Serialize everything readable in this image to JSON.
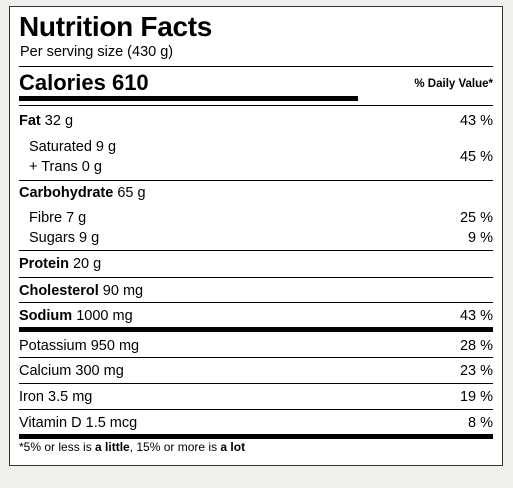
{
  "title": "Nutrition Facts",
  "serving": "Per serving size (430 g)",
  "calories": {
    "label": "Calories",
    "value": "610"
  },
  "dv_header": "% Daily Value*",
  "rows": {
    "fat": {
      "name": "Fat",
      "amount": "32 g",
      "dv": "43 %"
    },
    "saturated": {
      "name": "Saturated",
      "amount": "9 g"
    },
    "trans": {
      "name": "+ Trans",
      "amount": "0 g"
    },
    "sat_trans_dv": "45 %",
    "carbohydrate": {
      "name": "Carbohydrate",
      "amount": "65 g"
    },
    "fibre": {
      "name": "Fibre",
      "amount": "7 g",
      "dv": "25 %"
    },
    "sugars": {
      "name": "Sugars",
      "amount": "9 g",
      "dv": "9 %"
    },
    "protein": {
      "name": "Protein",
      "amount": "20 g"
    },
    "cholesterol": {
      "name": "Cholesterol",
      "amount": "90 mg"
    },
    "sodium": {
      "name": "Sodium",
      "amount": "1000 mg",
      "dv": "43 %"
    },
    "potassium": {
      "name": "Potassium",
      "amount": "950 mg",
      "dv": "28 %"
    },
    "calcium": {
      "name": "Calcium",
      "amount": "300 mg",
      "dv": "23 %"
    },
    "iron": {
      "name": "Iron",
      "amount": "3.5 mg",
      "dv": "19 %"
    },
    "vitamin_d": {
      "name": "Vitamin D",
      "amount": "1.5 mcg",
      "dv": "8 %"
    }
  },
  "footnote": {
    "p1": "*5% or less is ",
    "b1": "a little",
    "p2": ", 15% or more is ",
    "b2": "a lot"
  }
}
